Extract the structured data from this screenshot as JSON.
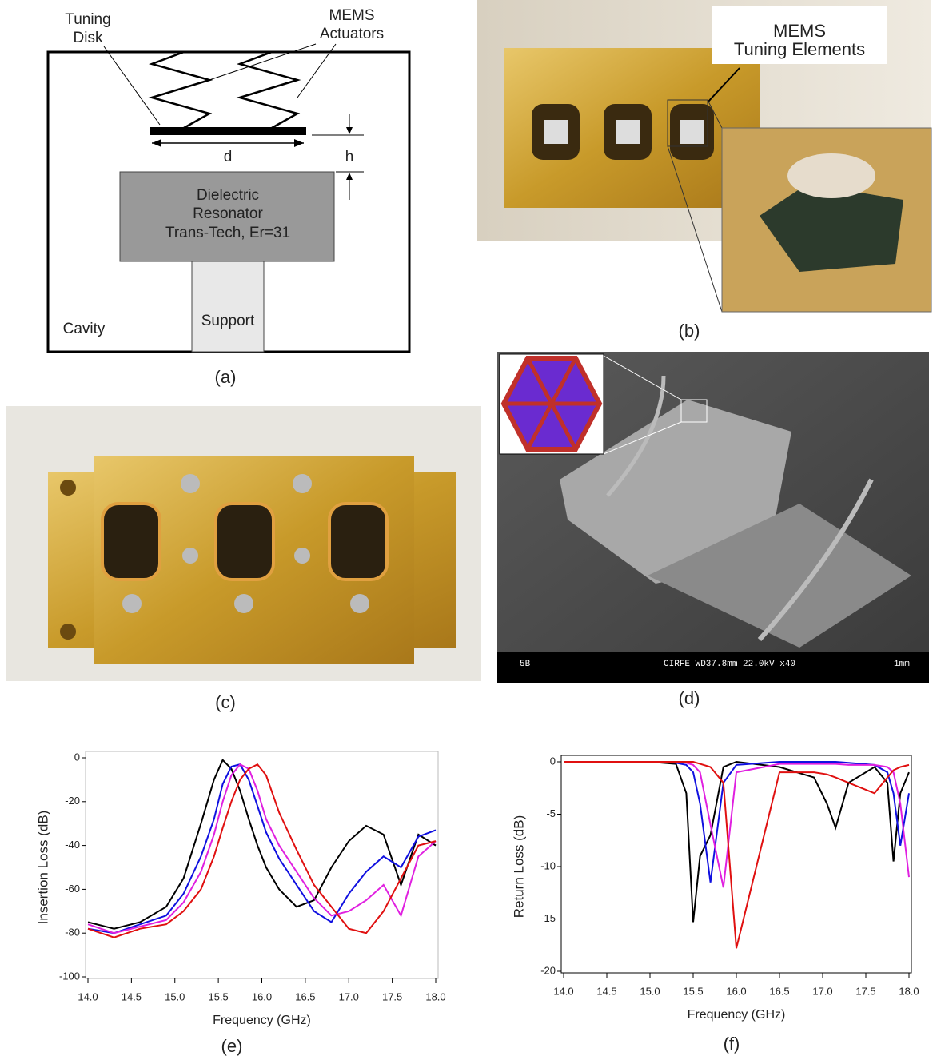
{
  "panel_a": {
    "tuning_disk": [
      "Tuning",
      "Disk"
    ],
    "mems_actuators": [
      "MEMS",
      "Actuators"
    ],
    "d": "d",
    "h": "h",
    "resonator": [
      "Dielectric",
      "Resonator",
      "Trans-Tech, Er=31"
    ],
    "support": "Support",
    "cavity": "Cavity",
    "caption": "(a)"
  },
  "panel_b": {
    "label": [
      "MEMS",
      "Tuning Elements"
    ],
    "caption": "(b)"
  },
  "panel_c": {
    "caption": "(c)"
  },
  "panel_d": {
    "sem_label": "5B",
    "sem_info": "CIRFE  WD37.8mm 22.0kV x40",
    "scale": "1mm",
    "caption": "(d)"
  },
  "chart_data": [
    {
      "type": "line",
      "caption": "(e)",
      "x_label": "Frequency (GHz)",
      "y_label": "Insertion Loss (dB)",
      "x": [
        14.0,
        14.3,
        14.6,
        14.9,
        15.1,
        15.3,
        15.45,
        15.55,
        15.65,
        15.75,
        15.85,
        15.95,
        16.05,
        16.2,
        16.4,
        16.6,
        16.8,
        17.0,
        17.2,
        17.4,
        17.6,
        17.8,
        18.0
      ],
      "series": [
        {
          "color": "#000000",
          "values": [
            -75,
            -78,
            -75,
            -68,
            -55,
            -30,
            -10,
            -1,
            -5,
            -15,
            -28,
            -40,
            -50,
            -60,
            -68,
            -65,
            -50,
            -38,
            -31,
            -35,
            -58,
            -35,
            -40
          ]
        },
        {
          "color": "#1010e0",
          "values": [
            -78,
            -80,
            -76,
            -72,
            -62,
            -45,
            -28,
            -12,
            -4,
            -3,
            -10,
            -22,
            -34,
            -46,
            -58,
            -70,
            -75,
            -62,
            -52,
            -45,
            -50,
            -36,
            -33
          ]
        },
        {
          "color": "#e020e0",
          "values": [
            -76,
            -80,
            -77,
            -74,
            -66,
            -52,
            -35,
            -20,
            -8,
            -3,
            -5,
            -15,
            -28,
            -40,
            -52,
            -64,
            -72,
            -70,
            -65,
            -58,
            -72,
            -45,
            -38
          ]
        },
        {
          "color": "#e01010",
          "values": [
            -78,
            -82,
            -78,
            -76,
            -70,
            -60,
            -45,
            -32,
            -20,
            -10,
            -5,
            -3,
            -8,
            -25,
            -42,
            -58,
            -68,
            -78,
            -80,
            -70,
            -55,
            -40,
            -38
          ]
        }
      ],
      "xlim": [
        14.0,
        18.0
      ],
      "ylim": [
        -100,
        0
      ],
      "xticks": [
        {
          "value": 14.0,
          "label": "14.0"
        },
        {
          "value": 14.5,
          "label": "14.5"
        },
        {
          "value": 15.0,
          "label": "15.0"
        },
        {
          "value": 15.5,
          "label": "15.5"
        },
        {
          "value": 16.0,
          "label": "16.0"
        },
        {
          "value": 16.5,
          "label": "16.5"
        },
        {
          "value": 17.0,
          "label": "17.0"
        },
        {
          "value": 17.5,
          "label": "17.5"
        },
        {
          "value": 18.0,
          "label": "18.0"
        }
      ],
      "yticks": [
        0,
        -20,
        -40,
        -60,
        -80,
        -100
      ]
    },
    {
      "type": "line",
      "caption": "(f)",
      "x_label": "Frequency (GHz)",
      "y_label": "Return Loss (dB)",
      "x": [
        14.0,
        14.5,
        15.0,
        15.3,
        15.42,
        15.5,
        15.58,
        15.7,
        15.85,
        16.0,
        16.5,
        16.9,
        17.05,
        17.15,
        17.3,
        17.6,
        17.75,
        17.82,
        17.9,
        18.0
      ],
      "series": [
        {
          "color": "#000000",
          "values": [
            0,
            0,
            0,
            -0.2,
            -3,
            -15.3,
            -9,
            -7,
            -0.5,
            0,
            -0.5,
            -1.5,
            -4,
            -6.3,
            -2,
            -0.5,
            -2,
            -9.5,
            -3,
            -1
          ]
        },
        {
          "color": "#1010e0",
          "values": [
            0,
            0,
            0,
            -0.1,
            -0.3,
            -1,
            -4,
            -11.5,
            -2,
            -0.3,
            0,
            0,
            0,
            0,
            -0.1,
            -0.3,
            -1,
            -3,
            -8,
            -3
          ]
        },
        {
          "color": "#e020e0",
          "values": [
            0,
            0,
            0,
            0,
            -0.1,
            -0.3,
            -1,
            -6,
            -12,
            -1,
            -0.2,
            -0.2,
            -0.2,
            -0.2,
            -0.3,
            -0.3,
            -0.5,
            -1,
            -4,
            -11
          ]
        },
        {
          "color": "#e01010",
          "values": [
            0,
            0,
            0,
            0,
            0,
            0,
            -0.2,
            -0.5,
            -2,
            -17.8,
            -1,
            -1,
            -1.2,
            -1.5,
            -2,
            -3,
            -1.5,
            -0.8,
            -0.5,
            -0.3
          ]
        }
      ],
      "xlim": [
        14.0,
        18.0
      ],
      "ylim": [
        -20,
        0
      ],
      "xticks": [
        {
          "value": 14.0,
          "label": "14.0"
        },
        {
          "value": 14.5,
          "label": "14.5"
        },
        {
          "value": 15.0,
          "label": "15.0"
        },
        {
          "value": 15.5,
          "label": "15.5"
        },
        {
          "value": 16.0,
          "label": "16.0"
        },
        {
          "value": 16.5,
          "label": "16.5"
        },
        {
          "value": 17.0,
          "label": "17.0"
        },
        {
          "value": 17.5,
          "label": "17.5"
        },
        {
          "value": 18.0,
          "label": "18.0"
        }
      ],
      "yticks": [
        0,
        -5,
        -10,
        -15,
        -20
      ]
    }
  ]
}
